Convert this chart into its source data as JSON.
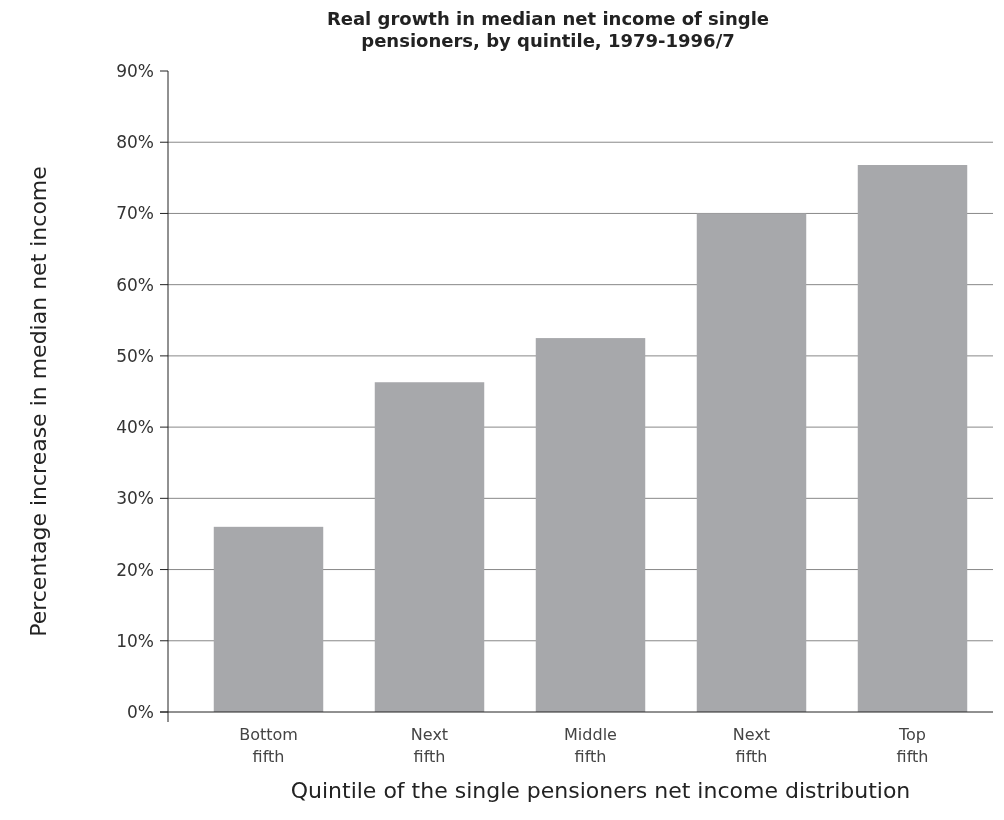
{
  "chart_data": {
    "type": "bar",
    "title": "Real growth in median net income of single pensioners, by quintile, 1979-1996/7",
    "xlabel": "Quintile of the single pensioners net income distribution",
    "ylabel": "Percentage increase in median net income",
    "categories": [
      "Bottom\nfifth",
      "Next\nfifth",
      "Middle\nfifth",
      "Next\nfifth",
      "Top\nfifth"
    ],
    "values": [
      26,
      46.3,
      52.5,
      70,
      76.8
    ],
    "color": "#a7a8ab",
    "ylim": [
      0,
      90
    ],
    "yticks": [
      {
        "value": 0,
        "label": "0%"
      },
      {
        "value": 10,
        "label": "10%"
      },
      {
        "value": 20,
        "label": "20%"
      },
      {
        "value": 30,
        "label": "30%"
      },
      {
        "value": 40,
        "label": "40%"
      },
      {
        "value": 50,
        "label": "50%"
      },
      {
        "value": 60,
        "label": "60%"
      },
      {
        "value": 70,
        "label": "70%"
      },
      {
        "value": 80,
        "label": "80%"
      },
      {
        "value": 90,
        "label": "90%"
      }
    ],
    "grid": "y"
  }
}
